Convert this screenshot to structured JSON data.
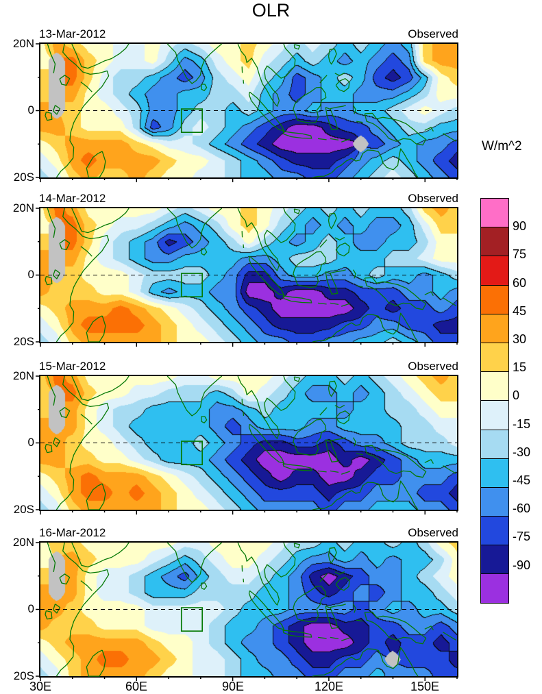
{
  "chart_data": {
    "type": "heatmap",
    "title": "OLR",
    "units": "W/m^2",
    "x_axis": {
      "ticks": [
        "30E",
        "60E",
        "90E",
        "120E",
        "150E"
      ],
      "tick_lons": [
        30,
        60,
        90,
        120,
        150
      ],
      "range": [
        30,
        160
      ]
    },
    "y_axis": {
      "ticks": [
        "20N",
        "0",
        "20S"
      ],
      "tick_lats": [
        20,
        0,
        -20
      ],
      "range": [
        -20,
        20
      ]
    },
    "grid_lons": [
      30,
      35,
      40,
      45,
      50,
      55,
      60,
      65,
      70,
      75,
      80,
      85,
      90,
      95,
      100,
      105,
      110,
      115,
      120,
      125,
      130,
      135,
      140,
      145,
      150,
      155,
      160
    ],
    "grid_lats": [
      20,
      15,
      10,
      5,
      0,
      -5,
      -10,
      -15,
      -20
    ],
    "missing_value": 999,
    "missing_color": "#C2C2C2",
    "coast_color": "#067A06",
    "equator_line": "dashed",
    "box_region": {
      "lon": [
        74,
        80.5
      ],
      "lat": [
        0.5,
        -6.5
      ]
    },
    "levels": [
      -90,
      -75,
      -60,
      -45,
      -30,
      -15,
      0,
      15,
      30,
      45,
      60,
      75,
      90
    ],
    "colors_low_to_high": [
      "#9B30E0",
      "#171996",
      "#2248DE",
      "#4090EE",
      "#2FBFF0",
      "#A6DBF2",
      "#DEF1FA",
      "#FFFFC9",
      "#FFD24A",
      "#FFA41C",
      "#FB7005",
      "#E31A17",
      "#A32024",
      "#FF6EC7"
    ],
    "colorbar_tick_labels_top_to_bottom": [
      "90",
      "75",
      "60",
      "45",
      "30",
      "15",
      "0",
      "-15",
      "-30",
      "-45",
      "-60",
      "-75",
      "-90"
    ],
    "panels": [
      {
        "date": "13-Mar-2012",
        "source": "Observed",
        "grid": [
          [
            8,
            38,
            22,
            8,
            8,
            -8,
            -8,
            8,
            -8,
            -22,
            -8,
            8,
            8,
            22,
            8,
            -8,
            -22,
            -8,
            -22,
            -38,
            -22,
            -38,
            -52,
            -38,
            22,
            38,
            38
          ],
          [
            8,
            999,
            52,
            22,
            8,
            -8,
            -8,
            8,
            -22,
            -52,
            -38,
            -8,
            8,
            22,
            -8,
            -22,
            -38,
            -22,
            -38,
            -52,
            -38,
            -52,
            -68,
            -52,
            22,
            38,
            38
          ],
          [
            22,
            999,
            52,
            22,
            -8,
            -22,
            -22,
            -38,
            -52,
            -68,
            -52,
            -22,
            -8,
            8,
            -22,
            -38,
            -68,
            -52,
            -38,
            -22,
            -38,
            -68,
            -82,
            -68,
            -38,
            8,
            22
          ],
          [
            22,
            999,
            38,
            8,
            -8,
            -22,
            -38,
            -52,
            -52,
            -38,
            -38,
            -22,
            -22,
            -8,
            -38,
            -52,
            -68,
            -52,
            -38,
            -38,
            -52,
            -52,
            -52,
            -38,
            -22,
            8,
            8
          ],
          [
            38,
            999,
            22,
            8,
            8,
            -8,
            -22,
            -52,
            -52,
            -38,
            -22,
            -22,
            -38,
            -22,
            -38,
            -52,
            -52,
            -38,
            -52,
            -52,
            -38,
            -38,
            -22,
            -8,
            8,
            -8,
            -22
          ],
          [
            38,
            38,
            22,
            8,
            8,
            8,
            -22,
            -68,
            -52,
            -22,
            -8,
            -22,
            -38,
            -52,
            -68,
            -82,
            -100,
            -100,
            -82,
            -68,
            -68,
            -52,
            -38,
            -22,
            -22,
            -38,
            -38
          ],
          [
            8,
            22,
            38,
            38,
            38,
            38,
            22,
            8,
            -8,
            -8,
            -22,
            -38,
            -52,
            -68,
            -82,
            -100,
            -100,
            -100,
            -100,
            -100,
            999,
            -68,
            -52,
            -38,
            -52,
            -52,
            -68
          ],
          [
            -8,
            8,
            38,
            52,
            38,
            38,
            38,
            38,
            22,
            8,
            8,
            -8,
            -22,
            -38,
            -52,
            -68,
            -82,
            -82,
            -82,
            -68,
            -52,
            -38,
            -22,
            -38,
            -52,
            -68,
            -82
          ],
          [
            -22,
            -8,
            22,
            38,
            22,
            22,
            38,
            22,
            8,
            8,
            -8,
            -8,
            -22,
            -38,
            -38,
            -52,
            -52,
            -68,
            -68,
            -52,
            -38,
            -22,
            -8,
            -22,
            -38,
            -52,
            -68
          ]
        ]
      },
      {
        "date": "14-Mar-2012",
        "source": "Observed",
        "grid": [
          [
            8,
            52,
            38,
            8,
            8,
            8,
            8,
            8,
            -8,
            -22,
            -8,
            8,
            8,
            22,
            8,
            -8,
            -22,
            -38,
            -22,
            -38,
            -22,
            -38,
            -38,
            -22,
            22,
            38,
            22
          ],
          [
            8,
            999,
            52,
            22,
            8,
            -8,
            -8,
            -22,
            -38,
            -52,
            -38,
            -22,
            8,
            22,
            8,
            -22,
            -38,
            -52,
            -38,
            -52,
            -38,
            -52,
            -52,
            -38,
            -8,
            22,
            22
          ],
          [
            22,
            999,
            52,
            22,
            -8,
            -22,
            -38,
            -52,
            -82,
            -68,
            -52,
            -38,
            -22,
            8,
            -22,
            -38,
            -52,
            -38,
            -22,
            -38,
            -52,
            -52,
            -38,
            -38,
            -22,
            8,
            8
          ],
          [
            38,
            999,
            38,
            8,
            -8,
            -22,
            -38,
            -52,
            -52,
            -38,
            -38,
            -38,
            -38,
            -52,
            -52,
            -38,
            -22,
            -22,
            -22,
            -38,
            -38,
            -38,
            -22,
            -22,
            -8,
            8,
            8
          ],
          [
            38,
            999,
            22,
            8,
            8,
            8,
            -8,
            -22,
            -22,
            -22,
            -22,
            -38,
            -52,
            -82,
            -82,
            -52,
            -38,
            -38,
            -52,
            -52,
            -38,
            -22,
            -38,
            -38,
            -52,
            -38,
            -22
          ],
          [
            38,
            22,
            22,
            22,
            8,
            8,
            -8,
            -38,
            -52,
            -38,
            -38,
            -52,
            -52,
            -100,
            -100,
            -82,
            -100,
            -100,
            -82,
            -82,
            -68,
            -68,
            -68,
            -52,
            -52,
            -38,
            -52
          ],
          [
            8,
            22,
            38,
            38,
            38,
            52,
            38,
            22,
            8,
            -8,
            -22,
            -38,
            -52,
            -68,
            -82,
            -100,
            -100,
            -100,
            -100,
            -100,
            -82,
            -68,
            -82,
            -68,
            -68,
            -52,
            -68
          ],
          [
            -8,
            8,
            38,
            52,
            52,
            52,
            52,
            38,
            22,
            8,
            -8,
            -22,
            -38,
            -52,
            -68,
            -82,
            -82,
            -82,
            -82,
            -68,
            -68,
            -52,
            -52,
            -68,
            -68,
            -82,
            -82
          ],
          [
            -22,
            -8,
            22,
            38,
            38,
            38,
            38,
            38,
            22,
            8,
            8,
            -8,
            -22,
            -38,
            -52,
            -52,
            -68,
            -68,
            -52,
            -52,
            -38,
            -38,
            -22,
            -38,
            -52,
            -68,
            -68
          ]
        ]
      },
      {
        "date": "15-Mar-2012",
        "source": "Observed",
        "grid": [
          [
            22,
            52,
            38,
            8,
            8,
            8,
            8,
            8,
            8,
            -8,
            -8,
            8,
            8,
            8,
            8,
            -8,
            -22,
            -38,
            -38,
            -22,
            -38,
            -22,
            -8,
            8,
            22,
            38,
            22
          ],
          [
            22,
            999,
            52,
            22,
            8,
            8,
            -8,
            -8,
            -22,
            -22,
            -22,
            -38,
            -22,
            8,
            -8,
            -22,
            -38,
            -52,
            -52,
            -38,
            -52,
            -38,
            -22,
            -8,
            8,
            22,
            22
          ],
          [
            22,
            999,
            38,
            8,
            -8,
            -22,
            -22,
            -38,
            -38,
            -38,
            -38,
            -52,
            -52,
            -38,
            -22,
            -38,
            -38,
            -38,
            -38,
            -52,
            -38,
            -38,
            -22,
            -22,
            -8,
            8,
            8
          ],
          [
            38,
            999,
            38,
            8,
            -8,
            -22,
            -38,
            -38,
            -38,
            -38,
            -38,
            -52,
            -68,
            -52,
            -38,
            -38,
            -38,
            -52,
            -52,
            -38,
            -38,
            -38,
            -38,
            -22,
            -22,
            -8,
            -8
          ],
          [
            38,
            38,
            22,
            8,
            8,
            -8,
            -22,
            -38,
            -38,
            -38,
            -22,
            -38,
            -52,
            -68,
            -82,
            -82,
            -68,
            -68,
            -82,
            -68,
            -52,
            -52,
            -38,
            -22,
            -22,
            -22,
            -8
          ],
          [
            38,
            38,
            22,
            22,
            8,
            8,
            -8,
            -22,
            -38,
            -38,
            -38,
            -52,
            -68,
            -82,
            -100,
            -100,
            -100,
            -100,
            -100,
            -82,
            -100,
            -82,
            -68,
            -52,
            -38,
            -38,
            -38
          ],
          [
            8,
            22,
            38,
            52,
            38,
            38,
            38,
            22,
            8,
            -8,
            -22,
            -38,
            -52,
            -68,
            -82,
            -100,
            -82,
            -82,
            -100,
            -100,
            -82,
            -68,
            -68,
            -52,
            -52,
            -52,
            -68
          ],
          [
            -8,
            8,
            38,
            52,
            52,
            38,
            52,
            38,
            22,
            8,
            -8,
            -22,
            -38,
            -52,
            -68,
            -68,
            -68,
            -68,
            -82,
            -68,
            -68,
            -52,
            -52,
            -52,
            -68,
            -68,
            -82
          ],
          [
            -22,
            -8,
            22,
            38,
            38,
            38,
            38,
            38,
            22,
            8,
            8,
            -8,
            -22,
            -38,
            -52,
            -52,
            -52,
            -52,
            -68,
            -52,
            -52,
            -38,
            -38,
            -38,
            -52,
            -52,
            -68
          ]
        ]
      },
      {
        "date": "16-Mar-2012",
        "source": "Observed",
        "grid": [
          [
            8,
            22,
            22,
            8,
            8,
            8,
            8,
            8,
            8,
            -8,
            -8,
            8,
            8,
            8,
            8,
            -8,
            -22,
            -22,
            -38,
            -22,
            -38,
            -38,
            -22,
            -38,
            -22,
            8,
            22
          ],
          [
            8,
            999,
            38,
            22,
            8,
            8,
            8,
            -8,
            -22,
            -38,
            -22,
            -8,
            8,
            8,
            -8,
            -22,
            -38,
            -52,
            -52,
            -38,
            -52,
            -38,
            -52,
            -38,
            -38,
            -22,
            8
          ],
          [
            22,
            999,
            38,
            8,
            -8,
            -8,
            -22,
            -38,
            -52,
            -68,
            -38,
            -22,
            -8,
            -8,
            -22,
            -38,
            -52,
            -82,
            -100,
            -82,
            -68,
            -52,
            -52,
            -38,
            -22,
            -8,
            8
          ],
          [
            38,
            999,
            38,
            8,
            -8,
            -8,
            -22,
            -38,
            -38,
            -38,
            -22,
            -22,
            -22,
            -22,
            -38,
            -38,
            -52,
            -68,
            -82,
            -68,
            -52,
            -68,
            -52,
            -38,
            -38,
            -22,
            -8
          ],
          [
            38,
            38,
            22,
            8,
            8,
            8,
            8,
            -8,
            -8,
            -8,
            -8,
            -8,
            -22,
            -38,
            -38,
            -38,
            -52,
            -52,
            -52,
            -52,
            -68,
            -52,
            -38,
            -52,
            -38,
            -38,
            -22
          ],
          [
            38,
            22,
            22,
            22,
            8,
            8,
            8,
            -8,
            -8,
            -8,
            -8,
            -22,
            -38,
            -38,
            -52,
            -68,
            -82,
            -100,
            -100,
            -82,
            -82,
            -68,
            -68,
            -52,
            -52,
            -68,
            -52
          ],
          [
            8,
            22,
            38,
            38,
            38,
            38,
            38,
            22,
            8,
            8,
            -8,
            -22,
            -38,
            -52,
            -52,
            -68,
            -82,
            -100,
            -100,
            -100,
            -82,
            -68,
            -82,
            -68,
            -68,
            -82,
            -68
          ],
          [
            -8,
            8,
            22,
            38,
            52,
            52,
            38,
            38,
            22,
            8,
            -8,
            -8,
            -22,
            -38,
            -52,
            -52,
            -68,
            -82,
            -82,
            -68,
            -68,
            -52,
            999,
            -68,
            -68,
            -68,
            -82
          ],
          [
            -22,
            -8,
            22,
            38,
            38,
            38,
            38,
            22,
            8,
            8,
            -8,
            -8,
            -22,
            -38,
            -38,
            -52,
            -52,
            -68,
            -68,
            -52,
            -52,
            -38,
            -52,
            -52,
            -52,
            -68,
            -68
          ]
        ]
      }
    ]
  }
}
